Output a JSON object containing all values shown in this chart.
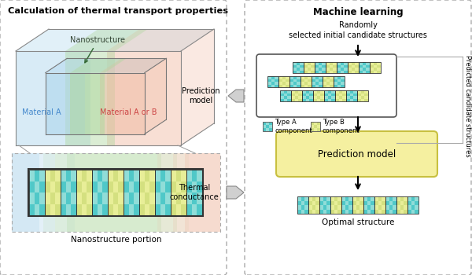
{
  "title_left": "Calculation of thermal transport properties",
  "title_right": "Machine learning",
  "subtitle_right": "Randomly\nselected initial candidate structures",
  "label_material_a": "Material A",
  "label_material_b": "Material A or B",
  "label_nanostructure": "Nanostructure",
  "label_nanostructure_portion": "Nanostructure portion",
  "label_prediction_model_arrow": "Prediction\nmodel",
  "label_thermal_conductance": "Thermal\nconductance",
  "label_prediction_model_box": "Prediction model",
  "label_optimal": "Optimal structure",
  "label_candidate_structures": "Predicted candidate structures",
  "label_type_a": "Type A\ncomponent",
  "label_type_b": "Type B\ncomponent",
  "color_blue": "#aad4ec",
  "color_green": "#b0d8a0",
  "color_red": "#f0b8a0",
  "color_teal": "#50c8c8",
  "color_teal2": "#90ddd8",
  "color_yg": "#d4e080",
  "color_yg2": "#e8ee98",
  "color_pred_box": "#f5f0a0",
  "color_pred_border": "#c8c040",
  "color_arrow_fill": "#d0d0d0",
  "color_arrow_edge": "#888888",
  "color_border": "#333333"
}
